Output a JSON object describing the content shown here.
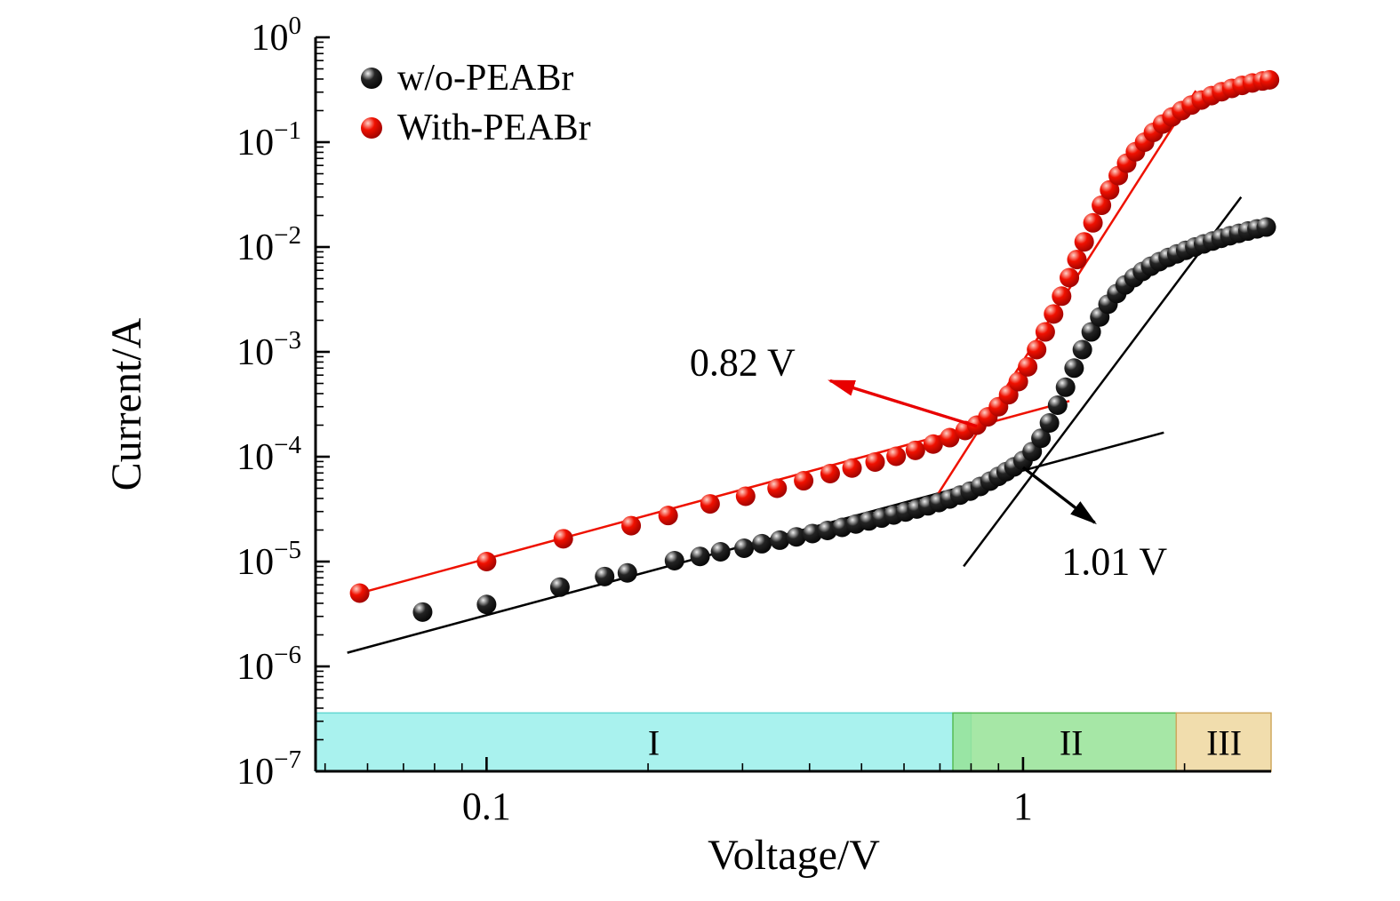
{
  "figure": {
    "background": "#ffffff"
  },
  "chart_data": {
    "type": "scatter",
    "title": "",
    "xlabel": "Voltage/V",
    "ylabel": "Current/A",
    "x_scale": "log",
    "y_scale": "log",
    "xlim": [
      0.048,
      2.9
    ],
    "ylim": [
      1e-07,
      1.0
    ],
    "grid": false,
    "x_ticks": [
      {
        "value": 0.1,
        "label": "0.1"
      },
      {
        "value": 1,
        "label": "1"
      }
    ],
    "y_ticks": [
      {
        "value": 1,
        "base": "10",
        "exp": "0"
      },
      {
        "value": 0.1,
        "base": "10",
        "exp": "−1"
      },
      {
        "value": 0.01,
        "base": "10",
        "exp": "−2"
      },
      {
        "value": 0.001,
        "base": "10",
        "exp": "−3"
      },
      {
        "value": 0.0001,
        "base": "10",
        "exp": "−4"
      },
      {
        "value": 1e-05,
        "base": "10",
        "exp": "−5"
      },
      {
        "value": 1e-06,
        "base": "10",
        "exp": "−6"
      },
      {
        "value": 1e-07,
        "base": "10",
        "exp": "−7"
      }
    ],
    "legend": {
      "position": "top-left",
      "items": [
        {
          "label": "w/o-PEABr",
          "series": 0
        },
        {
          "label": "With-PEABr",
          "series": 1
        }
      ]
    },
    "series": [
      {
        "name": "w/o-PEABr",
        "color": "#000000",
        "marker": {
          "highlight": "#f0f0f0",
          "body": "#242424",
          "edge": "#000000"
        },
        "points": [
          [
            0.076,
            3.3e-06
          ],
          [
            0.1,
            3.9e-06
          ],
          [
            0.137,
            5.7e-06
          ],
          [
            0.166,
            7.2e-06
          ],
          [
            0.183,
            7.8e-06
          ],
          [
            0.224,
            1.02e-05
          ],
          [
            0.25,
            1.12e-05
          ],
          [
            0.273,
            1.24e-05
          ],
          [
            0.302,
            1.34e-05
          ],
          [
            0.326,
            1.48e-05
          ],
          [
            0.352,
            1.6e-05
          ],
          [
            0.378,
            1.72e-05
          ],
          [
            0.405,
            1.85e-05
          ],
          [
            0.432,
            1.98e-05
          ],
          [
            0.46,
            2.12e-05
          ],
          [
            0.488,
            2.28e-05
          ],
          [
            0.516,
            2.44e-05
          ],
          [
            0.545,
            2.6e-05
          ],
          [
            0.574,
            2.78e-05
          ],
          [
            0.604,
            2.97e-05
          ],
          [
            0.634,
            3.17e-05
          ],
          [
            0.665,
            3.4e-05
          ],
          [
            0.697,
            3.65e-05
          ],
          [
            0.73,
            3.95e-05
          ],
          [
            0.763,
            4.3e-05
          ],
          [
            0.797,
            4.7e-05
          ],
          [
            0.832,
            5.2e-05
          ],
          [
            0.868,
            5.85e-05
          ],
          [
            0.9,
            6.5e-05
          ],
          [
            0.93,
            7.2e-05
          ],
          [
            0.962,
            8e-05
          ],
          [
            1.0,
            9.2e-05
          ],
          [
            1.04,
            0.000112
          ],
          [
            1.08,
            0.00015
          ],
          [
            1.12,
            0.00021
          ],
          [
            1.16,
            0.00031
          ],
          [
            1.2,
            0.00046
          ],
          [
            1.245,
            0.0007
          ],
          [
            1.29,
            0.00105
          ],
          [
            1.34,
            0.00155
          ],
          [
            1.39,
            0.00215
          ],
          [
            1.44,
            0.00285
          ],
          [
            1.495,
            0.0036
          ],
          [
            1.55,
            0.00435
          ],
          [
            1.61,
            0.0051
          ],
          [
            1.67,
            0.00585
          ],
          [
            1.73,
            0.00655
          ],
          [
            1.795,
            0.00725
          ],
          [
            1.865,
            0.00795
          ],
          [
            1.935,
            0.0086
          ],
          [
            2.01,
            0.0093
          ],
          [
            2.09,
            0.01
          ],
          [
            2.17,
            0.0107
          ],
          [
            2.255,
            0.0114
          ],
          [
            2.34,
            0.0121
          ],
          [
            2.43,
            0.0128
          ],
          [
            2.525,
            0.0135
          ],
          [
            2.625,
            0.0142
          ],
          [
            2.73,
            0.0149
          ],
          [
            2.84,
            0.0155
          ]
        ]
      },
      {
        "name": "With-PEABr",
        "color": "#ee1100",
        "marker": {
          "highlight": "#ffd0c6",
          "body": "#f01000",
          "edge": "#8c0000"
        },
        "points": [
          [
            0.058,
            5e-06
          ],
          [
            0.1,
            1e-05
          ],
          [
            0.139,
            1.65e-05
          ],
          [
            0.186,
            2.2e-05
          ],
          [
            0.218,
            2.75e-05
          ],
          [
            0.261,
            3.55e-05
          ],
          [
            0.304,
            4.2e-05
          ],
          [
            0.348,
            5e-05
          ],
          [
            0.39,
            5.9e-05
          ],
          [
            0.437,
            6.9e-05
          ],
          [
            0.48,
            7.8e-05
          ],
          [
            0.53,
            8.9e-05
          ],
          [
            0.58,
            0.000101
          ],
          [
            0.63,
            0.000115
          ],
          [
            0.68,
            0.000132
          ],
          [
            0.73,
            0.000152
          ],
          [
            0.78,
            0.000178
          ],
          [
            0.82,
            0.0002
          ],
          [
            0.86,
            0.00024
          ],
          [
            0.9,
            0.0003
          ],
          [
            0.94,
            0.00039
          ],
          [
            0.98,
            0.00052
          ],
          [
            1.02,
            0.00072
          ],
          [
            1.06,
            0.00105
          ],
          [
            1.1,
            0.00155
          ],
          [
            1.14,
            0.0023
          ],
          [
            1.18,
            0.0034
          ],
          [
            1.22,
            0.0051
          ],
          [
            1.26,
            0.0076
          ],
          [
            1.3,
            0.0112
          ],
          [
            1.35,
            0.017
          ],
          [
            1.4,
            0.025
          ],
          [
            1.45,
            0.035
          ],
          [
            1.505,
            0.048
          ],
          [
            1.56,
            0.063
          ],
          [
            1.62,
            0.081
          ],
          [
            1.685,
            0.1
          ],
          [
            1.75,
            0.124
          ],
          [
            1.82,
            0.149
          ],
          [
            1.895,
            0.174
          ],
          [
            1.975,
            0.2
          ],
          [
            2.06,
            0.226
          ],
          [
            2.15,
            0.252
          ],
          [
            2.245,
            0.278
          ],
          [
            2.345,
            0.303
          ],
          [
            2.45,
            0.326
          ],
          [
            2.56,
            0.348
          ],
          [
            2.675,
            0.367
          ],
          [
            2.795,
            0.383
          ],
          [
            2.88,
            0.393
          ]
        ]
      }
    ],
    "fit_lines": [
      {
        "name": "black-ohmic-fit",
        "color": "#000000",
        "width": 2.5,
        "from": [
          0.055,
          1.35e-06
        ],
        "to": [
          1.83,
          0.00017
        ]
      },
      {
        "name": "black-tfl-fit",
        "color": "#000000",
        "width": 2.5,
        "from": [
          0.775,
          9e-06
        ],
        "to": [
          2.55,
          0.03
        ]
      },
      {
        "name": "red-ohmic-fit",
        "color": "#ee1100",
        "width": 2.5,
        "from": [
          0.058,
          5e-06
        ],
        "to": [
          1.22,
          0.00034
        ]
      },
      {
        "name": "red-tfl-fit",
        "color": "#ee1100",
        "width": 2.5,
        "from": [
          0.69,
          4.2e-05
        ],
        "to": [
          2.1,
          0.31
        ]
      }
    ],
    "annotations": [
      {
        "text": "0.82 V",
        "color": "#e80000",
        "text_at": [
          0.3,
          0.00079
        ],
        "arrow_from": [
          0.82,
          0.000195
        ],
        "arrow_to": [
          0.437,
          0.00053
        ]
      },
      {
        "text": "1.01 V",
        "color": "#000000",
        "text_at": [
          1.48,
          1e-05
        ],
        "arrow_from": [
          1.0,
          7.9e-05
        ],
        "arrow_to": [
          1.36,
          2.35e-05
        ]
      }
    ],
    "regions": {
      "band_top": 3.6e-07,
      "items": [
        {
          "label": "I",
          "from": 0.048,
          "to": 0.8,
          "fill": "#a9f2ee",
          "border": "#62d8d2",
          "opacity": 1,
          "label_x": 0.205
        },
        {
          "label": "II",
          "from": 0.74,
          "to": 1.93,
          "fill": "#97e397",
          "border": "#55bb55",
          "opacity": 0.85,
          "label_x": 1.23
        },
        {
          "label": "III",
          "from": 1.93,
          "to": 2.9,
          "fill": "#f1ddad",
          "border": "#cfa85e",
          "opacity": 1,
          "label_x": 2.37
        }
      ]
    }
  }
}
